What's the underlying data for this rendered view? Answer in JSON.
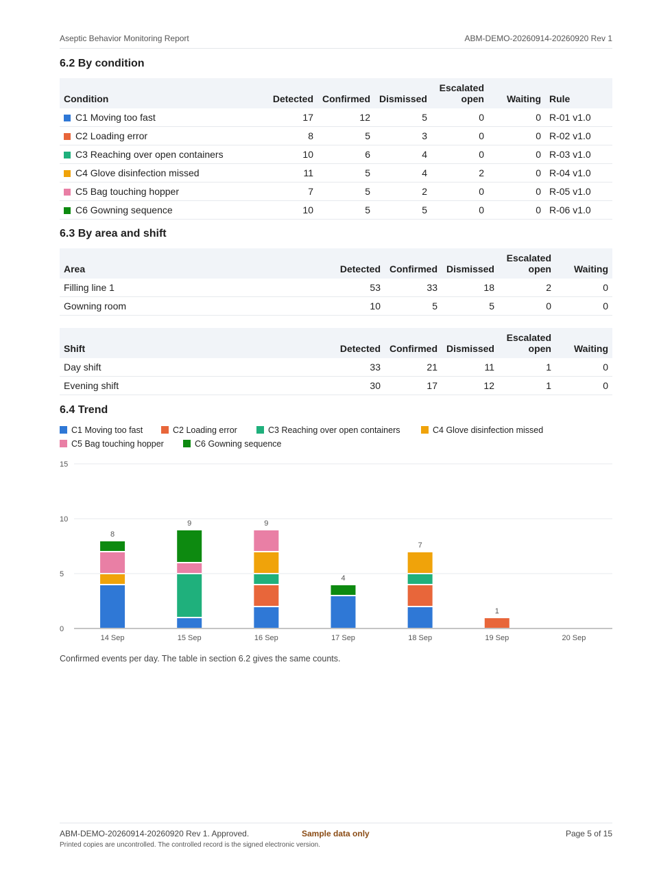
{
  "header": {
    "left": "Aseptic Behavior Monitoring Report",
    "right": "ABM-DEMO-20260914-20260920 Rev 1"
  },
  "colors": {
    "C1": "#2f78d6",
    "C2": "#e8663a",
    "C3": "#1fb07c",
    "C4": "#f0a30a",
    "C5": "#e97fa5",
    "C6": "#0d8a10"
  },
  "sections": {
    "condition": {
      "title": "6.2 By condition",
      "columns": [
        "Condition",
        "Detected",
        "Confirmed",
        "Dismissed",
        "Escalated open",
        "Waiting",
        "Rule"
      ],
      "rows": [
        {
          "key": "C1",
          "name": "C1 Moving too fast",
          "detected": "17",
          "confirmed": "12",
          "dismissed": "5",
          "escalated": "0",
          "waiting": "0",
          "rule": "R-01 v1.0"
        },
        {
          "key": "C2",
          "name": "C2 Loading error",
          "detected": "8",
          "confirmed": "5",
          "dismissed": "3",
          "escalated": "0",
          "waiting": "0",
          "rule": "R-02 v1.0"
        },
        {
          "key": "C3",
          "name": "C3 Reaching over open containers",
          "detected": "10",
          "confirmed": "6",
          "dismissed": "4",
          "escalated": "0",
          "waiting": "0",
          "rule": "R-03 v1.0"
        },
        {
          "key": "C4",
          "name": "C4 Glove disinfection missed",
          "detected": "11",
          "confirmed": "5",
          "dismissed": "4",
          "escalated": "2",
          "waiting": "0",
          "rule": "R-04 v1.0"
        },
        {
          "key": "C5",
          "name": "C5 Bag touching hopper",
          "detected": "7",
          "confirmed": "5",
          "dismissed": "2",
          "escalated": "0",
          "waiting": "0",
          "rule": "R-05 v1.0"
        },
        {
          "key": "C6",
          "name": "C6 Gowning sequence",
          "detected": "10",
          "confirmed": "5",
          "dismissed": "5",
          "escalated": "0",
          "waiting": "0",
          "rule": "R-06 v1.0"
        }
      ]
    },
    "area_shift": {
      "title": "6.3 By area and shift",
      "area_columns": [
        "Area",
        "Detected",
        "Confirmed",
        "Dismissed",
        "Escalated open",
        "Waiting"
      ],
      "area_rows": [
        {
          "name": "Filling line 1",
          "detected": "53",
          "confirmed": "33",
          "dismissed": "18",
          "escalated": "2",
          "waiting": "0"
        },
        {
          "name": "Gowning room",
          "detected": "10",
          "confirmed": "5",
          "dismissed": "5",
          "escalated": "0",
          "waiting": "0"
        }
      ],
      "shift_columns": [
        "Shift",
        "Detected",
        "Confirmed",
        "Dismissed",
        "Escalated open",
        "Waiting"
      ],
      "shift_rows": [
        {
          "name": "Day shift",
          "detected": "33",
          "confirmed": "21",
          "dismissed": "11",
          "escalated": "1",
          "waiting": "0"
        },
        {
          "name": "Evening shift",
          "detected": "30",
          "confirmed": "17",
          "dismissed": "12",
          "escalated": "1",
          "waiting": "0"
        }
      ]
    },
    "trend": {
      "title": "6.4 Trend",
      "caption": "Confirmed events per day. The table in section 6.2 gives the same counts."
    }
  },
  "chart_data": {
    "type": "bar",
    "stacked": true,
    "categories": [
      "14 Sep",
      "15 Sep",
      "16 Sep",
      "17 Sep",
      "18 Sep",
      "19 Sep",
      "20 Sep"
    ],
    "series": [
      {
        "name": "C1 Moving too fast",
        "key": "C1",
        "values": [
          4,
          1,
          2,
          3,
          2,
          0,
          0
        ]
      },
      {
        "name": "C2 Loading error",
        "key": "C2",
        "values": [
          0,
          0,
          2,
          0,
          2,
          1,
          0
        ]
      },
      {
        "name": "C3 Reaching over open containers",
        "key": "C3",
        "values": [
          0,
          4,
          1,
          0,
          1,
          0,
          0
        ]
      },
      {
        "name": "C4 Glove disinfection missed",
        "key": "C4",
        "values": [
          1,
          0,
          2,
          0,
          2,
          0,
          0
        ]
      },
      {
        "name": "C5 Bag touching hopper",
        "key": "C5",
        "values": [
          2,
          1,
          2,
          0,
          0,
          0,
          0
        ]
      },
      {
        "name": "C6 Gowning sequence",
        "key": "C6",
        "values": [
          1,
          3,
          0,
          1,
          0,
          0,
          0
        ]
      }
    ],
    "totals": [
      "8",
      "9",
      "9",
      "4",
      "7",
      "1",
      ""
    ],
    "yticks": [
      "0",
      "5",
      "10",
      "15"
    ],
    "ylim": [
      0,
      15
    ],
    "grid": true,
    "legend": "top"
  },
  "footer": {
    "doc": "ABM-DEMO-20260914-20260920 Rev 1. Approved.",
    "badge": "Sample data only",
    "page": "Page 5 of 15",
    "note": "Printed copies are uncontrolled. The controlled record is the signed electronic version."
  }
}
